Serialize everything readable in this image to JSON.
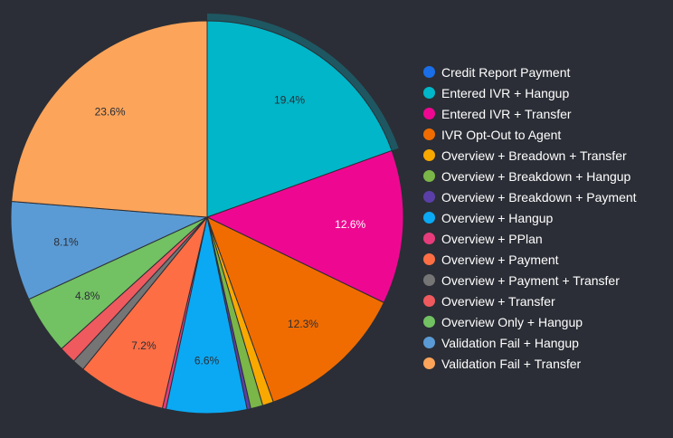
{
  "chart_data": {
    "type": "pie",
    "categories": [
      "Credit Report Payment",
      "Entered IVR + Hangup",
      "Entered IVR + Transfer",
      "IVR Opt-Out to Agent",
      "Overview + Breadown + Transfer",
      "Overview + Breakdown + Hangup",
      "Overview + Breakdown + Payment",
      "Overview + Hangup",
      "Overview + PPlan",
      "Overview + Payment",
      "Overview + Payment + Transfer",
      "Overview + Transfer",
      "Overview Only + Hangup",
      "Validation Fail + Hangup",
      "Validation Fail + Transfer"
    ],
    "values": [
      0,
      19.4,
      12.6,
      12.3,
      0.9,
      1.0,
      0.3,
      6.6,
      0.3,
      7.2,
      1.0,
      1.4,
      4.8,
      8.1,
      23.6
    ],
    "data_labels": [
      "",
      "19.4%",
      "12.6%",
      "12.3%",
      "",
      "",
      "",
      "6.6%",
      "",
      "7.2%",
      "",
      "",
      "4.8%",
      "8.1%",
      "23.6%"
    ],
    "colors": [
      "#1a6fe8",
      "#00b6c8",
      "#ee0891",
      "#f06c00",
      "#f9a800",
      "#7ab648",
      "#5b3fa8",
      "#0ba9f3",
      "#e63c7b",
      "#fd6e45",
      "#757575",
      "#ef5a5f",
      "#72c163",
      "#5b9bd5",
      "#fba45a"
    ],
    "label_colors": [
      "#ffffff",
      "#2b2e36",
      "#ffffff",
      "#2b2e36",
      "#2b2e36",
      "#2b2e36",
      "#2b2e36",
      "#2b2e36",
      "#2b2e36",
      "#2b2e36",
      "#2b2e36",
      "#2b2e36",
      "#2b2e36",
      "#2b2e36",
      "#2b2e36"
    ],
    "highlighted_slice": "Entered IVR + Hangup",
    "title": "",
    "legend_position": "right"
  }
}
